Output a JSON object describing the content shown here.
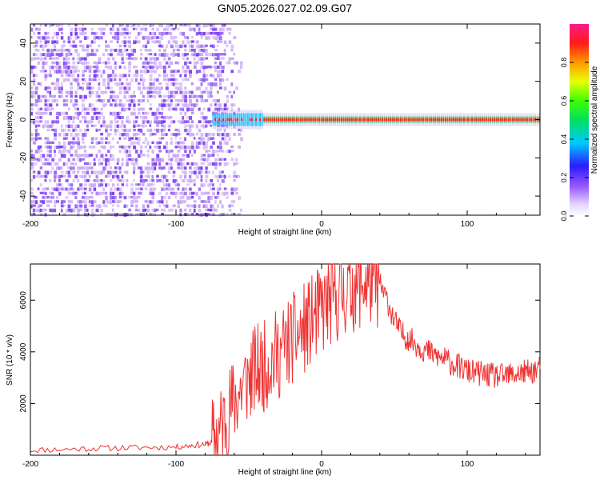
{
  "figure": {
    "title": "GN05.2026.027.02.09.G07"
  },
  "chart_data": [
    {
      "type": "heatmap",
      "xlabel": "Height of straight line (km)",
      "ylabel": "Frequency (Hz)",
      "xlim": [
        -200,
        150
      ],
      "ylim": [
        -50,
        50
      ],
      "xticks": [
        -200,
        -100,
        0,
        100
      ],
      "yticks": [
        -40,
        -20,
        0,
        20,
        40
      ],
      "colorbar": {
        "label": "Normalized spectral amplitude",
        "range": [
          0,
          1
        ],
        "ticks": [
          0.0,
          0.2,
          0.4,
          0.6,
          0.8
        ],
        "tick_labels": [
          "0.0",
          "0.2",
          "0.4",
          "0.6",
          "0.8"
        ]
      },
      "colors": {
        "noise": "#7a3cf0",
        "noise_light": "#c9a8f5",
        "tone": "#ff2020",
        "tone_edge": "#20d040"
      },
      "features": {
        "noise_region_x": [
          -200,
          -70
        ],
        "tone_frequency_hz": 0,
        "tone_onset_x": -75,
        "strong_tone_from_x": -40
      }
    },
    {
      "type": "line",
      "xlabel": "Height of straight line (km)",
      "ylabel": "SNR (10 * v/v)",
      "xlim": [
        -200,
        150
      ],
      "ylim": [
        0,
        7400
      ],
      "xticks": [
        -200,
        -100,
        0,
        100
      ],
      "yticks": [
        2000,
        4000,
        6000
      ],
      "grid": false,
      "color": "#ee3333",
      "series": [
        {
          "x": [
            -200,
            -180,
            -160,
            -140,
            -120,
            -100,
            -90,
            -80,
            -75,
            -70,
            -65,
            -60,
            -55,
            -50,
            -45,
            -40,
            -35,
            -30,
            -25,
            -20,
            -15,
            -10,
            -5,
            0,
            5,
            10,
            15,
            20,
            25,
            30,
            35,
            40,
            45,
            50,
            55,
            60,
            65,
            70,
            75,
            80,
            85,
            90,
            95,
            100,
            105,
            110,
            115,
            120,
            125,
            130,
            135,
            140,
            145,
            150
          ],
          "values": [
            200,
            220,
            260,
            280,
            300,
            320,
            380,
            420,
            500,
            900,
            1600,
            2100,
            2600,
            3000,
            3300,
            3400,
            3700,
            3900,
            4200,
            4500,
            4700,
            5000,
            5300,
            5600,
            5900,
            6100,
            6300,
            6500,
            6600,
            6700,
            6750,
            6600,
            6000,
            5200,
            4700,
            4500,
            4300,
            4100,
            3950,
            3800,
            3700,
            3550,
            3400,
            3250,
            3200,
            3150,
            3100,
            3050,
            3050,
            3100,
            3150,
            3200,
            3250,
            3350
          ]
        }
      ]
    }
  ]
}
